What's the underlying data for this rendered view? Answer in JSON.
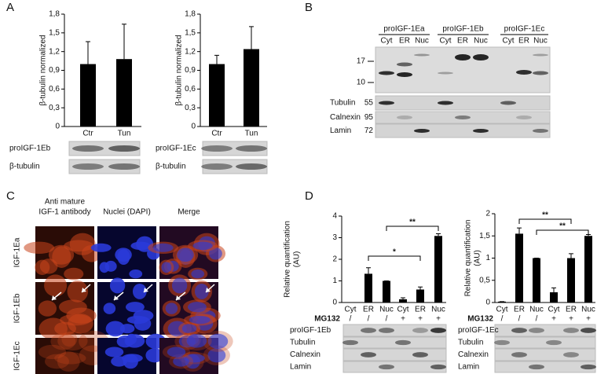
{
  "panel_labels": [
    "A",
    "B",
    "C",
    "D"
  ],
  "chart_data": [
    {
      "type": "bar",
      "y_label": "β-tubulin normalized",
      "categories": [
        "Ctr",
        "Tun"
      ],
      "values": [
        1.0,
        1.08
      ],
      "errors": [
        0.36,
        0.56
      ],
      "color": "#000000",
      "ylim": [
        0,
        1.8
      ],
      "yticks": [
        0,
        {
          "value": 0.3,
          "label": "0,3"
        },
        {
          "value": 0.6,
          "label": "0,6"
        },
        {
          "value": 0.9,
          "label": "0,9"
        },
        {
          "value": 1.2,
          "label": "1,2"
        },
        {
          "value": 1.5,
          "label": "1,5"
        },
        {
          "value": 1.8,
          "label": "1,8"
        }
      ],
      "blot_labels": [
        "proIGF-1Eb",
        "β-tubulin"
      ]
    },
    {
      "type": "bar",
      "y_label": "β-tubulin normalized",
      "categories": [
        "Ctr",
        "Tun"
      ],
      "values": [
        1.0,
        1.24
      ],
      "errors": [
        0.14,
        0.36
      ],
      "color": "#000000",
      "ylim": [
        0,
        1.8
      ],
      "yticks": [
        0,
        {
          "value": 0.3,
          "label": "0,3"
        },
        {
          "value": 0.6,
          "label": "0,6"
        },
        {
          "value": 0.9,
          "label": "0,9"
        },
        {
          "value": 1.2,
          "label": "1,2"
        },
        {
          "value": 1.5,
          "label": "1,5"
        },
        {
          "value": 1.8,
          "label": "1,8"
        }
      ],
      "blot_labels": [
        "proIGF-1Ec",
        "β-tubulin"
      ]
    },
    {
      "type": "bar",
      "y_label": [
        "Relative quantification",
        "(AU)"
      ],
      "categories": [
        "Cyt",
        "ER",
        "Nuc",
        "Cyt",
        "ER",
        "Nuc"
      ],
      "values": [
        0,
        1.33,
        1.0,
        0.15,
        0.6,
        3.08
      ],
      "errors": [
        0,
        0.28,
        0,
        0.07,
        0.12,
        0.1
      ],
      "color": "#000000",
      "ylim": [
        0,
        4
      ],
      "yticks": [
        0,
        1,
        2,
        3,
        4
      ],
      "annotations": [
        "**",
        "*"
      ],
      "treatment": {
        "label": "MG132",
        "values": [
          "/",
          "/",
          "/",
          "+",
          "+",
          "+"
        ]
      },
      "blot_labels": [
        "proIGF-1Eb",
        "Tubulin",
        "Calnexin",
        "Lamin"
      ]
    },
    {
      "type": "bar",
      "y_label": [
        "Relative quantification",
        "(AU)"
      ],
      "categories": [
        "Cyt",
        "ER",
        "Nuc",
        "Cyt",
        "ER",
        "Nuc"
      ],
      "values": [
        0.02,
        1.55,
        1.0,
        0.23,
        1.0,
        1.5
      ],
      "errors": [
        0,
        0.13,
        0,
        0.1,
        0.1,
        0.03
      ],
      "color": "#000000",
      "ylim": [
        0,
        2
      ],
      "yticks": [
        0,
        {
          "value": 0.5,
          "label": "0,5"
        },
        1,
        {
          "value": 1.5,
          "label": "1,5"
        },
        2
      ],
      "annotations": [
        "**",
        "**"
      ],
      "treatment": {
        "label": "MG132",
        "values": [
          "/",
          "/",
          "/",
          "+",
          "+",
          "+"
        ]
      },
      "blot_labels": [
        "proIGF-1Ec",
        "Tubulin",
        "Calnexin",
        "Lamin"
      ]
    }
  ],
  "panel_b": {
    "groups": [
      "proIGF-1Ea",
      "proIGF-1Eb",
      "proIGF-1Ec"
    ],
    "lanes": [
      "Cyt",
      "ER",
      "Nuc",
      "Cyt",
      "ER",
      "Nuc",
      "Cyt",
      "ER",
      "Nuc"
    ],
    "markers": [
      17,
      10
    ],
    "strips": [
      {
        "name": "Tubulin",
        "kda": 55
      },
      {
        "name": "Calnexin",
        "kda": 95
      },
      {
        "name": "Lamin",
        "kda": 72
      }
    ]
  },
  "panel_c": {
    "columns": [
      [
        "Anti mature",
        "IGF-1 antibody"
      ],
      [
        "Nuclei (DAPI)"
      ],
      [
        "Merge"
      ]
    ],
    "rows": [
      "IGF-1Ea",
      "IGF-1Eb",
      "IGF-1Ec"
    ]
  }
}
